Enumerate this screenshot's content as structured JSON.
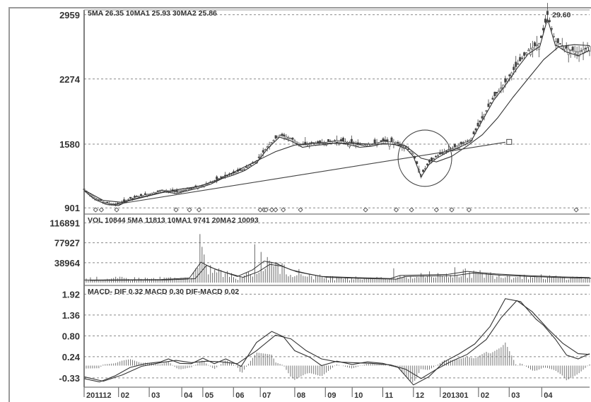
{
  "chart_data": [
    {
      "type": "candlestick",
      "header": "5MA 26.35  10MA1 25.93  30MA2 25.86",
      "peak_label": "29.60",
      "y_ticks": [
        "2959",
        "2274",
        "1580",
        "901"
      ],
      "y_tick_values": [
        2959,
        2274,
        1580,
        901
      ],
      "ylim": [
        880,
        3010
      ],
      "price_path": [
        [
          0,
          1100
        ],
        [
          6,
          1000
        ],
        [
          12,
          950
        ],
        [
          18,
          940
        ],
        [
          24,
          1000
        ],
        [
          30,
          1030
        ],
        [
          36,
          1060
        ],
        [
          42,
          1090
        ],
        [
          48,
          1070
        ],
        [
          54,
          1100
        ],
        [
          60,
          1130
        ],
        [
          66,
          1170
        ],
        [
          72,
          1230
        ],
        [
          78,
          1270
        ],
        [
          84,
          1320
        ],
        [
          90,
          1400
        ],
        [
          96,
          1560
        ],
        [
          102,
          1680
        ],
        [
          108,
          1640
        ],
        [
          114,
          1570
        ],
        [
          120,
          1590
        ],
        [
          126,
          1600
        ],
        [
          132,
          1620
        ],
        [
          138,
          1600
        ],
        [
          144,
          1570
        ],
        [
          150,
          1580
        ],
        [
          156,
          1610
        ],
        [
          162,
          1600
        ],
        [
          168,
          1560
        ],
        [
          172,
          1470
        ],
        [
          176,
          1250
        ],
        [
          180,
          1380
        ],
        [
          184,
          1450
        ],
        [
          190,
          1520
        ],
        [
          196,
          1570
        ],
        [
          202,
          1630
        ],
        [
          208,
          1860
        ],
        [
          214,
          2080
        ],
        [
          220,
          2240
        ],
        [
          226,
          2420
        ],
        [
          232,
          2580
        ],
        [
          238,
          2660
        ],
        [
          242,
          2960
        ],
        [
          246,
          2680
        ],
        [
          252,
          2600
        ],
        [
          258,
          2560
        ],
        [
          264,
          2620
        ]
      ],
      "ma_long_path": [
        [
          0,
          1090
        ],
        [
          10,
          980
        ],
        [
          20,
          960
        ],
        [
          30,
          1010
        ],
        [
          40,
          1060
        ],
        [
          50,
          1100
        ],
        [
          60,
          1130
        ],
        [
          70,
          1200
        ],
        [
          80,
          1300
        ],
        [
          90,
          1400
        ],
        [
          100,
          1500
        ],
        [
          110,
          1570
        ],
        [
          120,
          1590
        ],
        [
          130,
          1590
        ],
        [
          140,
          1590
        ],
        [
          150,
          1580
        ],
        [
          160,
          1580
        ],
        [
          168,
          1560
        ],
        [
          176,
          1430
        ],
        [
          184,
          1390
        ],
        [
          192,
          1450
        ],
        [
          200,
          1560
        ],
        [
          208,
          1680
        ],
        [
          216,
          1860
        ],
        [
          224,
          2080
        ],
        [
          232,
          2280
        ],
        [
          240,
          2480
        ],
        [
          248,
          2620
        ],
        [
          256,
          2640
        ],
        [
          264,
          2630
        ]
      ],
      "trendline": [
        [
          14,
          930
        ],
        [
          220,
          1600
        ]
      ],
      "ellipse": {
        "day": 178,
        "value": 1430,
        "rx_days": 14,
        "ry_value": 300
      },
      "trendline_end_marker_day": 222,
      "markers_days": [
        6,
        9,
        17,
        48,
        55,
        60,
        92,
        94,
        95,
        98,
        100,
        104,
        113,
        147,
        163,
        171,
        184,
        192,
        201,
        257
      ]
    },
    {
      "type": "bar",
      "header": "VOL 10844  5MA 11813  10MA1 9741  20MA2 10093",
      "y_ticks": [
        "116891",
        "77927",
        "38964"
      ],
      "y_tick_values": [
        116891,
        77927,
        38964
      ],
      "ylim": [
        0,
        130000
      ],
      "spikes": [
        [
          61,
          95000
        ],
        [
          62,
          70000
        ],
        [
          63,
          55000
        ],
        [
          89,
          75000
        ],
        [
          92,
          60000
        ],
        [
          96,
          50000
        ],
        [
          100,
          40000
        ],
        [
          162,
          28000
        ],
        [
          180,
          22000
        ],
        [
          194,
          30000
        ]
      ],
      "base_level": 9000,
      "ma_path": [
        [
          0,
          5000
        ],
        [
          40,
          6000
        ],
        [
          55,
          9000
        ],
        [
          61,
          40000
        ],
        [
          66,
          30000
        ],
        [
          72,
          22000
        ],
        [
          80,
          12000
        ],
        [
          88,
          25000
        ],
        [
          94,
          42000
        ],
        [
          100,
          38000
        ],
        [
          108,
          25000
        ],
        [
          116,
          18000
        ],
        [
          124,
          12000
        ],
        [
          140,
          10000
        ],
        [
          160,
          8000
        ],
        [
          165,
          14000
        ],
        [
          175,
          15000
        ],
        [
          190,
          16000
        ],
        [
          200,
          22000
        ],
        [
          215,
          17000
        ],
        [
          230,
          14000
        ],
        [
          250,
          11000
        ],
        [
          264,
          10000
        ]
      ]
    },
    {
      "type": "line",
      "header": "MACD- DIF 0.32  MACD 0.30  DIF-MACD 0.02",
      "y_ticks": [
        "1.92",
        "1.36",
        "0.80",
        "0.24",
        "-0.33"
      ],
      "y_tick_values": [
        1.92,
        1.36,
        0.8,
        0.24,
        -0.33
      ],
      "ylim": [
        -0.58,
        2.08
      ],
      "x_tick_labels": [
        "201112",
        "02",
        "03",
        "04",
        "05",
        "06",
        "07",
        "08",
        "09",
        "10",
        "11",
        "12",
        "201301",
        "02",
        "03",
        "04"
      ],
      "x_tick_days": [
        0,
        18,
        34,
        51,
        62,
        78,
        92,
        110,
        126,
        140,
        156,
        172,
        186,
        206,
        222,
        239
      ],
      "dif_path": [
        [
          0,
          -0.35
        ],
        [
          8,
          -0.44
        ],
        [
          16,
          -0.28
        ],
        [
          24,
          -0.05
        ],
        [
          32,
          0.05
        ],
        [
          40,
          0.1
        ],
        [
          44,
          0.18
        ],
        [
          50,
          0.06
        ],
        [
          56,
          0.05
        ],
        [
          62,
          0.2
        ],
        [
          68,
          0.05
        ],
        [
          74,
          0.18
        ],
        [
          82,
          -0.02
        ],
        [
          90,
          0.62
        ],
        [
          98,
          0.92
        ],
        [
          104,
          0.78
        ],
        [
          110,
          0.4
        ],
        [
          118,
          0.22
        ],
        [
          124,
          0.0
        ],
        [
          132,
          0.12
        ],
        [
          140,
          0.03
        ],
        [
          148,
          0.1
        ],
        [
          156,
          0.06
        ],
        [
          164,
          -0.05
        ],
        [
          172,
          -0.52
        ],
        [
          180,
          -0.3
        ],
        [
          188,
          0.1
        ],
        [
          196,
          0.32
        ],
        [
          204,
          0.58
        ],
        [
          212,
          1.05
        ],
        [
          220,
          1.8
        ],
        [
          228,
          1.72
        ],
        [
          236,
          1.25
        ],
        [
          240,
          1.08
        ],
        [
          246,
          0.72
        ],
        [
          252,
          0.28
        ],
        [
          258,
          0.18
        ],
        [
          264,
          0.32
        ]
      ],
      "macd_path": [
        [
          0,
          -0.3
        ],
        [
          10,
          -0.42
        ],
        [
          20,
          -0.25
        ],
        [
          30,
          -0.02
        ],
        [
          40,
          0.08
        ],
        [
          48,
          0.14
        ],
        [
          56,
          0.08
        ],
        [
          64,
          0.12
        ],
        [
          72,
          0.1
        ],
        [
          80,
          0.05
        ],
        [
          90,
          0.4
        ],
        [
          100,
          0.82
        ],
        [
          108,
          0.72
        ],
        [
          116,
          0.4
        ],
        [
          124,
          0.18
        ],
        [
          132,
          0.1
        ],
        [
          140,
          0.08
        ],
        [
          150,
          0.06
        ],
        [
          160,
          0.02
        ],
        [
          168,
          -0.1
        ],
        [
          176,
          -0.35
        ],
        [
          184,
          -0.1
        ],
        [
          192,
          0.12
        ],
        [
          200,
          0.3
        ],
        [
          210,
          0.7
        ],
        [
          218,
          1.3
        ],
        [
          226,
          1.75
        ],
        [
          234,
          1.45
        ],
        [
          242,
          1.0
        ],
        [
          250,
          0.6
        ],
        [
          258,
          0.32
        ],
        [
          264,
          0.3
        ]
      ],
      "hist_amplitude": 0.45
    }
  ]
}
